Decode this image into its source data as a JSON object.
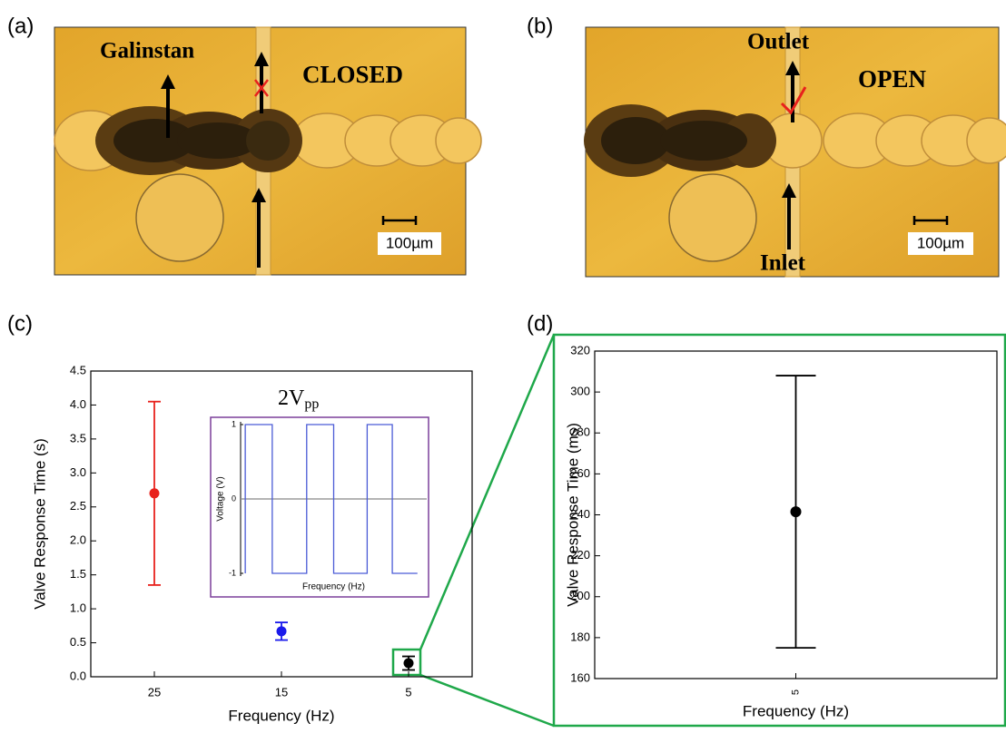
{
  "panels": {
    "a": {
      "label": "(a)",
      "material": "Galinstan",
      "state": "CLOSED",
      "scale": "100µm"
    },
    "b": {
      "label": "(b)",
      "outlet": "Outlet",
      "state": "OPEN",
      "inlet": "Inlet",
      "scale": "100µm"
    },
    "c": {
      "label": "(c)"
    },
    "d": {
      "label": "(d)"
    }
  },
  "chart_data": [
    {
      "type": "scatter",
      "x_label": "Frequency (Hz)",
      "y_label": "Valve Response Time (s)",
      "annotation": "2V",
      "annotation_sub": "pp",
      "x": [
        25,
        15,
        5
      ],
      "values": [
        2.7,
        0.67,
        0.2
      ],
      "errors": [
        1.35,
        0.13,
        0.1
      ],
      "colors": [
        "#e8211c",
        "#1a1aeb",
        "#000000"
      ],
      "xlim": [
        30,
        0
      ],
      "xticks": [
        25,
        15,
        5
      ],
      "ylim": [
        0,
        4.5
      ],
      "yticks": [
        {
          "value": 0,
          "label": "0.0"
        },
        0.5,
        {
          "value": 1,
          "label": "1.0"
        },
        1.5,
        {
          "value": 2,
          "label": "2.0"
        },
        2.5,
        {
          "value": 3,
          "label": "3.0"
        },
        3.5,
        {
          "value": 4,
          "label": "4.0"
        },
        4.5
      ]
    },
    {
      "type": "line",
      "x_label": "Frequency (Hz)",
      "y_label": "Voltage (V)",
      "x": [
        0.5,
        0.5,
        3.4,
        3.4,
        7.1,
        7.1,
        10.0,
        10.0,
        13.6,
        13.6,
        16.3,
        16.3,
        19.0
      ],
      "values": [
        -1,
        1,
        1,
        -1,
        -1,
        1,
        1,
        -1,
        -1,
        1,
        1,
        -1,
        -1
      ],
      "color": "#4a5bd6",
      "xlim": [
        0,
        20
      ],
      "ylim": [
        -1,
        1
      ],
      "yticks": [
        -1,
        0,
        1
      ],
      "hline": 0
    },
    {
      "type": "scatter",
      "x_label": "Frequency (Hz)",
      "y_label": "Valve Response Time (ms)",
      "categories": [
        "5"
      ],
      "values": [
        241.5
      ],
      "errors": [
        66.5
      ],
      "color": "#000000",
      "ylim": [
        160,
        320
      ],
      "yticks": [
        160,
        180,
        200,
        220,
        240,
        260,
        280,
        300,
        320
      ]
    }
  ]
}
